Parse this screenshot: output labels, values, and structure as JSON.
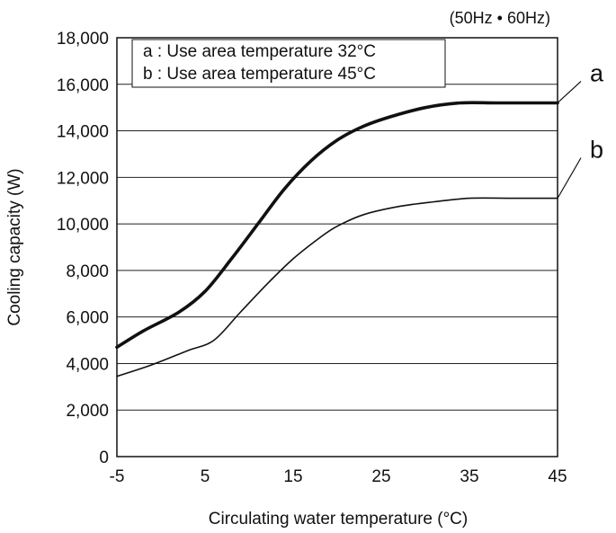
{
  "chart_data": {
    "type": "line",
    "title": "",
    "note": "(50Hz • 60Hz)",
    "xlabel": "Circulating water temperature (°C)",
    "ylabel": "Cooling capacity (W)",
    "xlim": [
      -5,
      45
    ],
    "ylim": [
      0,
      18000
    ],
    "xticks": [
      -5,
      5,
      15,
      25,
      35,
      45
    ],
    "xtick_labels": [
      "-5",
      "5",
      "15",
      "25",
      "35",
      "45"
    ],
    "yticks": [
      0,
      2000,
      4000,
      6000,
      8000,
      10000,
      12000,
      14000,
      16000,
      18000
    ],
    "ytick_labels": [
      "0",
      "2,000",
      "4,000",
      "6,000",
      "8,000",
      "10,000",
      "12,000",
      "14,000",
      "16,000",
      "18,000"
    ],
    "grid": "horizontal",
    "legend": {
      "position": "top-left",
      "entries": [
        "a : Use area temperature 32°C",
        "b : Use area temperature 45°C"
      ]
    },
    "series": [
      {
        "name": "a",
        "x": [
          -5,
          -2,
          2,
          5,
          8,
          11,
          14,
          17,
          20,
          23,
          26,
          30,
          34,
          38,
          42,
          45
        ],
        "values": [
          4700,
          5400,
          6200,
          7100,
          8500,
          10000,
          11500,
          12700,
          13600,
          14200,
          14600,
          15000,
          15200,
          15200,
          15200,
          15200
        ]
      },
      {
        "name": "b",
        "x": [
          -5,
          -1,
          3,
          6,
          9,
          12,
          15,
          18,
          20,
          23,
          27,
          31,
          35,
          40,
          45
        ],
        "values": [
          3450,
          3950,
          4550,
          5000,
          6200,
          7400,
          8500,
          9400,
          9900,
          10400,
          10750,
          10950,
          11100,
          11100,
          11100
        ]
      }
    ]
  }
}
